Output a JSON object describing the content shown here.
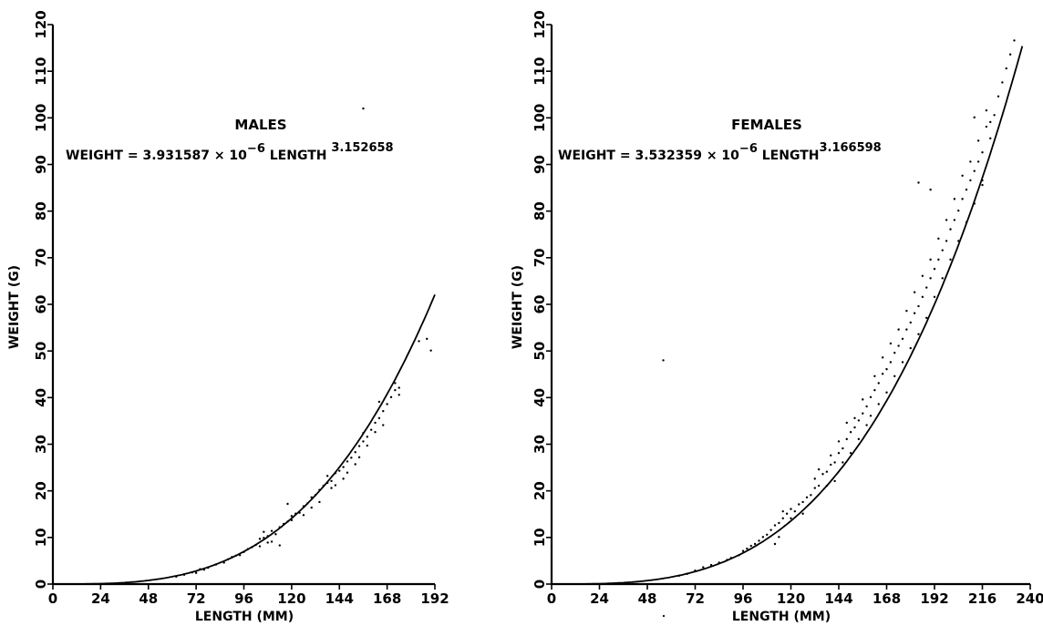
{
  "chart_data": [
    {
      "type": "scatter",
      "title": "MALES",
      "equation": {
        "lhs": "WEIGHT = 3.931587 × 10",
        "exponent_1": "−6",
        "mid": " LENGTH ",
        "exponent_2": "3.152658"
      },
      "xlabel": "LENGTH (MM)",
      "ylabel": "WEIGHT (G)",
      "xlim": [
        0,
        192
      ],
      "ylim": [
        0,
        120
      ],
      "x_ticks": [
        "0",
        "24",
        "48",
        "72",
        "96",
        "120",
        "144",
        "168",
        "192"
      ],
      "y_ticks": [
        "0",
        "10",
        "20",
        "30",
        "40",
        "50",
        "60",
        "70",
        "80",
        "90",
        "100",
        "110",
        "120"
      ],
      "fit_curve": {
        "a": 3.931587e-06,
        "b": 3.152658,
        "x_range": [
          0,
          192
        ]
      },
      "series": [
        {
          "points": [
            [
              62,
              1.6
            ],
            [
              66,
              2
            ],
            [
              70,
              2.5
            ],
            [
              72,
              2.4
            ],
            [
              74,
              3.2
            ],
            [
              76,
              3.1
            ],
            [
              78,
              3.5
            ],
            [
              82,
              4.2
            ],
            [
              86,
              4.6
            ],
            [
              88,
              5.3
            ],
            [
              90,
              5.8
            ],
            [
              92,
              6.1
            ],
            [
              94,
              6.2
            ],
            [
              96,
              6.9
            ],
            [
              98,
              7.5
            ],
            [
              100,
              7.9
            ],
            [
              102,
              8.4
            ],
            [
              104,
              8.1
            ],
            [
              104,
              9.7
            ],
            [
              106,
              9.9
            ],
            [
              106,
              11.2
            ],
            [
              108,
              8.9
            ],
            [
              108,
              10.3
            ],
            [
              110,
              11.4
            ],
            [
              110,
              9.1
            ],
            [
              112,
              10.7
            ],
            [
              114,
              12.2
            ],
            [
              114,
              8.3
            ],
            [
              116,
              12.9
            ],
            [
              118,
              13.4
            ],
            [
              118,
              17.2
            ],
            [
              120,
              14.6
            ],
            [
              120,
              13.7
            ],
            [
              122,
              15.1
            ],
            [
              124,
              15.3
            ],
            [
              126,
              16.7
            ],
            [
              126,
              14.8
            ],
            [
              128,
              17.3
            ],
            [
              130,
              16.4
            ],
            [
              130,
              18.6
            ],
            [
              132,
              19.1
            ],
            [
              134,
              20.2
            ],
            [
              134,
              17.6
            ],
            [
              136,
              21.1
            ],
            [
              138,
              21.7
            ],
            [
              138,
              23.2
            ],
            [
              140,
              22.1
            ],
            [
              140,
              20.6
            ],
            [
              142,
              23.8
            ],
            [
              142,
              21.2
            ],
            [
              144,
              24.3
            ],
            [
              146,
              25.1
            ],
            [
              146,
              22.6
            ],
            [
              148,
              26.3
            ],
            [
              148,
              23.9
            ],
            [
              150,
              27.1
            ],
            [
              152,
              28.3
            ],
            [
              152,
              25.7
            ],
            [
              154,
              29.6
            ],
            [
              154,
              27.2
            ],
            [
              156,
              30.6
            ],
            [
              156,
              32.4
            ],
            [
              158,
              31.6
            ],
            [
              158,
              29.7
            ],
            [
              160,
              33.1
            ],
            [
              162,
              34.6
            ],
            [
              162,
              32.6
            ],
            [
              164,
              35.6
            ],
            [
              164,
              39.1
            ],
            [
              166,
              37.1
            ],
            [
              166,
              34.1
            ],
            [
              168,
              38.6
            ],
            [
              170,
              40.1
            ],
            [
              172,
              41.6
            ],
            [
              172,
              43.1
            ],
            [
              174,
              42.1
            ],
            [
              174,
              40.6
            ],
            [
              184,
              52.1
            ],
            [
              188,
              52.6
            ],
            [
              190,
              50.1
            ],
            [
              156,
              102
            ]
          ]
        }
      ]
    },
    {
      "type": "scatter",
      "title": "FEMALES",
      "equation": {
        "lhs": "WEIGHT = 3.532359 × 10",
        "exponent_1": "−6",
        "mid": " LENGTH",
        "exponent_2": "3.166598"
      },
      "xlabel": "LENGTH (MM)",
      "ylabel": "WEIGHT (G)",
      "xlim": [
        0,
        240
      ],
      "ylim": [
        0,
        120
      ],
      "x_ticks": [
        "0",
        "24",
        "48",
        "72",
        "96",
        "120",
        "144",
        "168",
        "192",
        "216",
        "240"
      ],
      "y_ticks": [
        "0",
        "10",
        "20",
        "30",
        "40",
        "50",
        "60",
        "70",
        "80",
        "90",
        "100",
        "110",
        "120"
      ],
      "fit_curve": {
        "a": 3.532359e-06,
        "b": 3.166598,
        "x_range": [
          0,
          236
        ]
      },
      "series": [
        {
          "points": [
            [
              56,
              48
            ],
            [
              64,
              1.8
            ],
            [
              68,
              2.2
            ],
            [
              72,
              2.9
            ],
            [
              76,
              3.6
            ],
            [
              80,
              4.1
            ],
            [
              84,
              4.6
            ],
            [
              88,
              5.2
            ],
            [
              90,
              5.6
            ],
            [
              94,
              6.2
            ],
            [
              96,
              7.1
            ],
            [
              98,
              7.6
            ],
            [
              100,
              8.2
            ],
            [
              102,
              8.6
            ],
            [
              104,
              9.3
            ],
            [
              106,
              10.1
            ],
            [
              108,
              10.6
            ],
            [
              110,
              11.6
            ],
            [
              112,
              12.6
            ],
            [
              112,
              8.6
            ],
            [
              114,
              13.1
            ],
            [
              114,
              10.1
            ],
            [
              116,
              14.1
            ],
            [
              116,
              15.6
            ],
            [
              118,
              15.1
            ],
            [
              120,
              16.1
            ],
            [
              120,
              14.1
            ],
            [
              122,
              15.6
            ],
            [
              124,
              17.1
            ],
            [
              126,
              17.6
            ],
            [
              126,
              15.1
            ],
            [
              128,
              18.6
            ],
            [
              130,
              19.1
            ],
            [
              132,
              20.6
            ],
            [
              132,
              22.6
            ],
            [
              134,
              21.1
            ],
            [
              134,
              24.6
            ],
            [
              136,
              23.6
            ],
            [
              138,
              24.1
            ],
            [
              138,
              21.1
            ],
            [
              140,
              25.6
            ],
            [
              140,
              27.6
            ],
            [
              142,
              26.1
            ],
            [
              142,
              22.1
            ],
            [
              144,
              28.1
            ],
            [
              144,
              30.6
            ],
            [
              146,
              29.1
            ],
            [
              146,
              26.1
            ],
            [
              148,
              31.1
            ],
            [
              148,
              34.6
            ],
            [
              150,
              32.6
            ],
            [
              150,
              28.1
            ],
            [
              152,
              33.6
            ],
            [
              152,
              35.6
            ],
            [
              154,
              35.1
            ],
            [
              154,
              31.1
            ],
            [
              156,
              36.6
            ],
            [
              156,
              39.6
            ],
            [
              158,
              38.1
            ],
            [
              158,
              34.1
            ],
            [
              160,
              40.1
            ],
            [
              160,
              36.1
            ],
            [
              162,
              41.6
            ],
            [
              162,
              44.6
            ],
            [
              164,
              43.1
            ],
            [
              164,
              38.6
            ],
            [
              166,
              45.1
            ],
            [
              166,
              48.6
            ],
            [
              168,
              46.1
            ],
            [
              168,
              41.1
            ],
            [
              170,
              47.6
            ],
            [
              170,
              51.6
            ],
            [
              172,
              49.6
            ],
            [
              172,
              44.6
            ],
            [
              174,
              51.1
            ],
            [
              174,
              54.6
            ],
            [
              176,
              52.6
            ],
            [
              176,
              47.6
            ],
            [
              178,
              54.6
            ],
            [
              178,
              58.6
            ],
            [
              180,
              56.1
            ],
            [
              180,
              50.6
            ],
            [
              182,
              58.1
            ],
            [
              182,
              62.6
            ],
            [
              184,
              59.6
            ],
            [
              184,
              53.6
            ],
            [
              186,
              61.6
            ],
            [
              186,
              66.1
            ],
            [
              188,
              63.6
            ],
            [
              188,
              57.1
            ],
            [
              190,
              65.6
            ],
            [
              190,
              69.6
            ],
            [
              192,
              67.6
            ],
            [
              192,
              61.6
            ],
            [
              194,
              69.6
            ],
            [
              194,
              74.1
            ],
            [
              196,
              71.6
            ],
            [
              196,
              65.6
            ],
            [
              198,
              73.6
            ],
            [
              198,
              78.1
            ],
            [
              200,
              76.1
            ],
            [
              200,
              69.6
            ],
            [
              202,
              78.1
            ],
            [
              202,
              82.6
            ],
            [
              204,
              80.1
            ],
            [
              204,
              73.6
            ],
            [
              206,
              82.6
            ],
            [
              206,
              87.6
            ],
            [
              208,
              84.6
            ],
            [
              208,
              77.6
            ],
            [
              210,
              86.6
            ],
            [
              210,
              90.6
            ],
            [
              212,
              88.6
            ],
            [
              212,
              81.6
            ],
            [
              214,
              90.6
            ],
            [
              214,
              95.1
            ],
            [
              216,
              92.6
            ],
            [
              216,
              85.6
            ],
            [
              218,
              98.1
            ],
            [
              218,
              101.6
            ],
            [
              220,
              99.1
            ],
            [
              220,
              95.6
            ],
            [
              222,
              100.6
            ],
            [
              224,
              104.6
            ],
            [
              226,
              107.6
            ],
            [
              228,
              110.6
            ],
            [
              230,
              113.6
            ],
            [
              232,
              116.6
            ],
            [
              184,
              86.1
            ],
            [
              190,
              84.6
            ],
            [
              212,
              100.1
            ],
            [
              216,
              86.6
            ]
          ]
        }
      ]
    }
  ]
}
